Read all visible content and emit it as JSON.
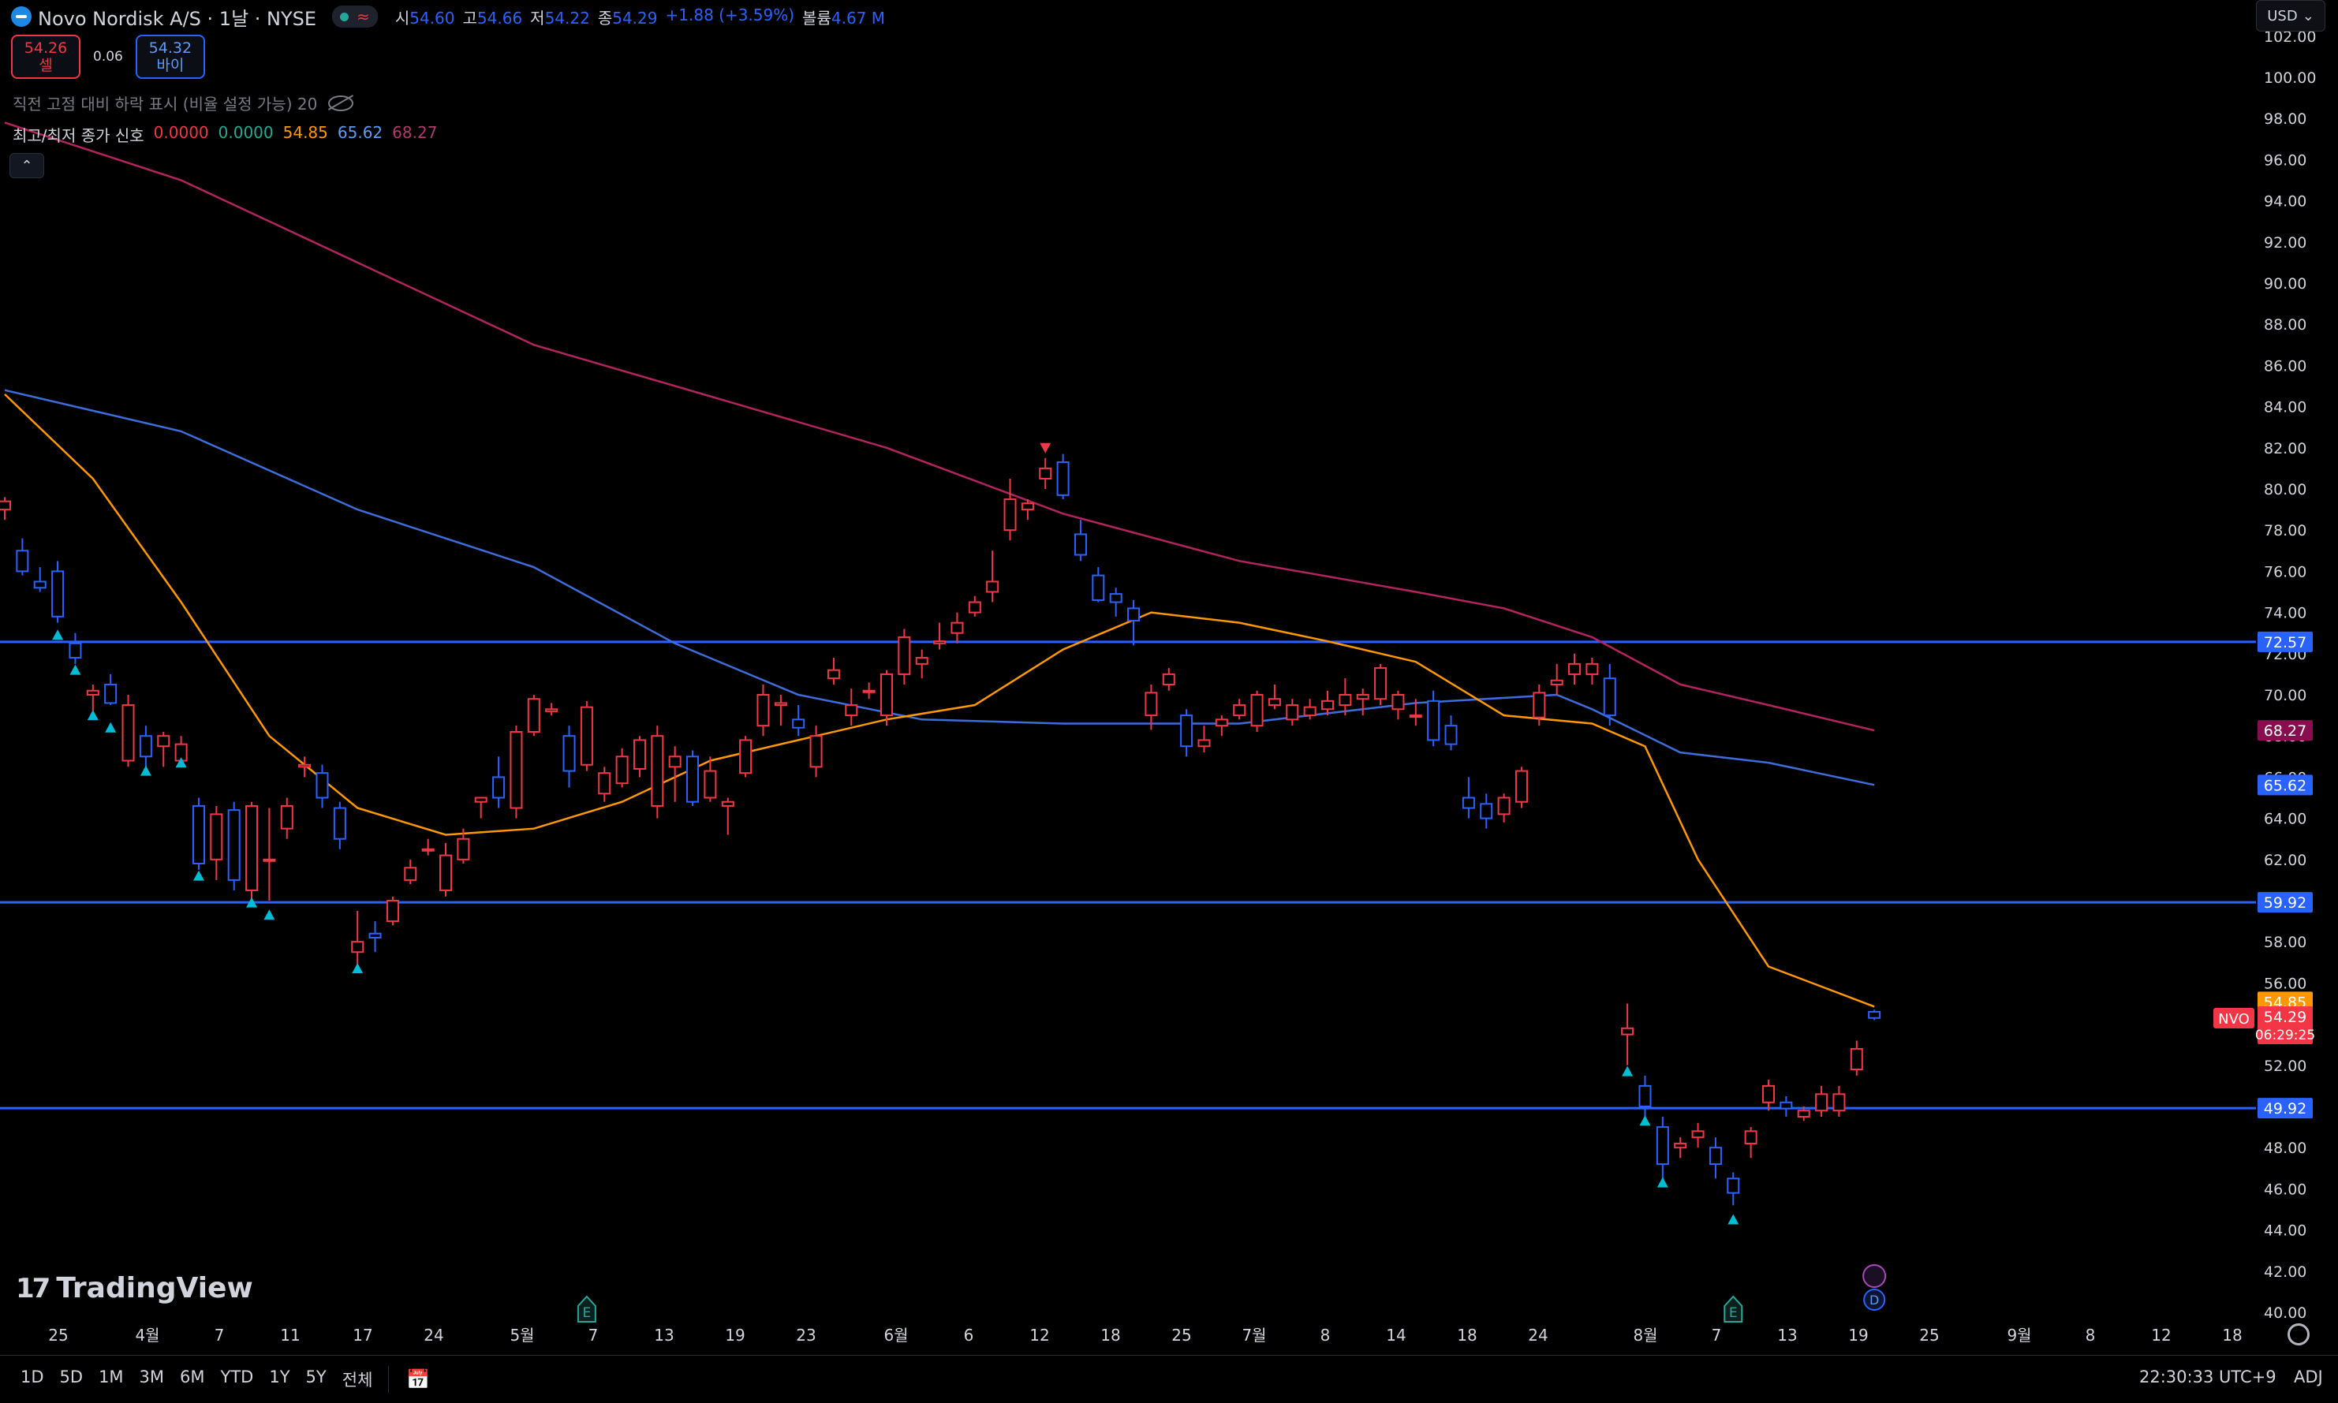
{
  "header": {
    "symbol": "Novo Nordisk A/S · 1날 · NYSE",
    "status_icon": "market-open-dot",
    "ohlc": [
      {
        "label": "시",
        "value": "54.60"
      },
      {
        "label": "고",
        "value": "54.66"
      },
      {
        "label": "저",
        "value": "54.22"
      },
      {
        "label": "종",
        "value": "54.29"
      }
    ],
    "change": "+1.88 (+3.59%)",
    "volume_label": "볼륨",
    "volume_value": "4.67 M"
  },
  "trade": {
    "sell_price": "54.26",
    "sell_label": "셀",
    "spread": "0.06",
    "buy_price": "54.32",
    "buy_label": "바이"
  },
  "indicators": {
    "line1": "직전 고점 대비 하락 표시 (비율 설정 가능) 20",
    "line2_label": "최고/최저 종가 신호",
    "line2_values": [
      {
        "value": "0.0000",
        "color": "#f23645"
      },
      {
        "value": "0.0000",
        "color": "#22ab94"
      },
      {
        "value": "54.85",
        "color": "#ff9800"
      },
      {
        "value": "65.62",
        "color": "#5b9cf6"
      },
      {
        "value": "68.27",
        "color": "#b03a6e"
      }
    ]
  },
  "currency": "USD",
  "watermark": "TradingView",
  "bottom": {
    "ranges": [
      "1D",
      "5D",
      "1M",
      "3M",
      "6M",
      "YTD",
      "1Y",
      "5Y",
      "전체"
    ],
    "clock": "22:30:33 UTC+9",
    "adj": "ADJ"
  },
  "chart_data": {
    "type": "candlestick",
    "symbol": "NVO",
    "ylim": [
      40,
      103
    ],
    "y_ticks": [
      40,
      42,
      44,
      46,
      48,
      50,
      52,
      54,
      56,
      58,
      60,
      62,
      64,
      66,
      68,
      70,
      72,
      74,
      76,
      78,
      80,
      82,
      84,
      86,
      88,
      90,
      92,
      94,
      96,
      98,
      100,
      102
    ],
    "x_ticks": [
      "25",
      "4월",
      "7",
      "11",
      "17",
      "24",
      "5월",
      "7",
      "13",
      "19",
      "23",
      "6월",
      "6",
      "12",
      "18",
      "25",
      "7월",
      "8",
      "14",
      "18",
      "24",
      "8월",
      "7",
      "13",
      "19",
      "25",
      "9월",
      "8",
      "12",
      "18"
    ],
    "horizontal_lines": [
      72.57,
      59.92,
      49.92
    ],
    "price_labels": [
      {
        "value": "72.57",
        "color": "#2962ff"
      },
      {
        "value": "68.27",
        "color": "#880e4f"
      },
      {
        "value": "65.62",
        "color": "#2962ff"
      },
      {
        "value": "59.92",
        "color": "#2962ff"
      },
      {
        "value": "54.85",
        "color": "#ff9800"
      },
      {
        "value": "54.29",
        "color": "#f23645",
        "tag": "NVO",
        "countdown": "06:29:25"
      },
      {
        "value": "49.92",
        "color": "#2962ff"
      }
    ],
    "candles": [
      [
        0,
        79.0,
        79.6,
        78.5,
        79.4
      ],
      [
        1,
        77.0,
        77.6,
        75.8,
        76.0
      ],
      [
        2,
        75.5,
        76.2,
        75.0,
        75.2
      ],
      [
        3,
        76.0,
        76.5,
        73.5,
        73.8
      ],
      [
        4,
        72.5,
        73.0,
        71.5,
        71.8
      ],
      [
        5,
        70.0,
        70.5,
        69.2,
        70.2
      ],
      [
        6,
        70.5,
        71.0,
        69.5,
        69.6
      ],
      [
        7,
        66.8,
        70.0,
        66.5,
        69.5
      ],
      [
        8,
        68.0,
        68.5,
        66.5,
        67.0
      ],
      [
        9,
        67.5,
        68.2,
        66.5,
        68.0
      ],
      [
        10,
        66.8,
        68.0,
        66.6,
        67.6
      ],
      [
        11,
        64.6,
        65.0,
        61.5,
        61.8
      ],
      [
        12,
        62.0,
        64.6,
        61.0,
        64.2
      ],
      [
        13,
        64.4,
        64.8,
        60.5,
        61.0
      ],
      [
        14,
        60.5,
        64.8,
        60.0,
        64.6
      ],
      [
        15,
        62.0,
        64.5,
        60.0,
        62.0
      ],
      [
        16,
        63.5,
        65.0,
        63.0,
        64.6
      ],
      [
        17,
        66.5,
        67.0,
        66.0,
        66.6
      ],
      [
        18,
        66.2,
        66.6,
        64.5,
        65.0
      ],
      [
        19,
        64.5,
        64.8,
        62.5,
        63.0
      ],
      [
        20,
        57.5,
        59.5,
        56.8,
        58.0
      ],
      [
        21,
        58.4,
        59.0,
        57.5,
        58.2
      ],
      [
        22,
        59.0,
        60.2,
        58.8,
        60.0
      ],
      [
        23,
        61.0,
        62.0,
        60.8,
        61.6
      ],
      [
        24,
        62.5,
        63.0,
        62.2,
        62.5
      ],
      [
        25,
        60.5,
        62.8,
        60.2,
        62.2
      ],
      [
        26,
        62.0,
        63.5,
        61.8,
        63.0
      ],
      [
        27,
        64.8,
        65.0,
        64.0,
        65.0
      ],
      [
        28,
        66.0,
        67.0,
        64.5,
        65.0
      ],
      [
        29,
        64.5,
        68.5,
        64.0,
        68.2
      ],
      [
        30,
        68.2,
        70.0,
        68.0,
        69.8
      ],
      [
        31,
        69.2,
        69.6,
        69.0,
        69.3
      ],
      [
        32,
        68.0,
        68.5,
        65.5,
        66.3
      ],
      [
        33,
        66.6,
        69.7,
        66.3,
        69.4
      ],
      [
        34,
        65.2,
        66.5,
        64.8,
        66.2
      ],
      [
        35,
        65.7,
        67.4,
        65.5,
        67.0
      ],
      [
        36,
        66.4,
        68.0,
        66.0,
        67.8
      ],
      [
        37,
        64.6,
        68.5,
        64.0,
        68.0
      ],
      [
        38,
        66.5,
        67.5,
        64.8,
        67.0
      ],
      [
        39,
        67.0,
        67.3,
        64.6,
        64.8
      ],
      [
        40,
        65.0,
        67.0,
        64.8,
        66.3
      ],
      [
        41,
        64.6,
        65.0,
        63.2,
        64.8
      ],
      [
        42,
        66.2,
        68.0,
        66.0,
        67.8
      ],
      [
        43,
        68.5,
        70.5,
        68.0,
        70.0
      ],
      [
        44,
        69.5,
        70.0,
        68.5,
        69.6
      ],
      [
        45,
        68.8,
        69.5,
        68.0,
        68.4
      ],
      [
        46,
        66.5,
        68.5,
        66.0,
        68.0
      ],
      [
        47,
        70.8,
        71.8,
        70.5,
        71.2
      ],
      [
        48,
        69.0,
        70.3,
        68.5,
        69.5
      ],
      [
        49,
        70.2,
        70.6,
        69.8,
        70.2
      ],
      [
        50,
        69.0,
        71.2,
        68.5,
        71.0
      ],
      [
        51,
        71.0,
        73.2,
        70.5,
        72.8
      ],
      [
        52,
        71.5,
        72.2,
        70.8,
        71.8
      ],
      [
        53,
        72.5,
        73.5,
        72.2,
        72.6
      ],
      [
        54,
        73.0,
        74.0,
        72.5,
        73.5
      ],
      [
        55,
        74.0,
        74.8,
        73.8,
        74.5
      ],
      [
        56,
        75.0,
        77.0,
        74.5,
        75.5
      ],
      [
        57,
        78.0,
        80.5,
        77.5,
        79.5
      ],
      [
        58,
        79.0,
        79.5,
        78.5,
        79.3
      ],
      [
        59,
        80.5,
        81.5,
        80.0,
        81.0
      ],
      [
        60,
        81.3,
        81.7,
        79.5,
        79.7
      ],
      [
        61,
        77.8,
        78.5,
        76.5,
        76.8
      ],
      [
        62,
        75.8,
        76.2,
        74.5,
        74.6
      ],
      [
        63,
        74.9,
        75.2,
        73.8,
        74.5
      ],
      [
        64,
        74.2,
        74.6,
        72.4,
        73.6
      ],
      [
        65,
        69.0,
        70.5,
        68.3,
        70.1
      ],
      [
        66,
        70.5,
        71.3,
        70.2,
        71.0
      ],
      [
        67,
        69.0,
        69.3,
        67.0,
        67.5
      ],
      [
        68,
        67.5,
        68.5,
        67.2,
        67.8
      ],
      [
        69,
        68.5,
        69.0,
        68.0,
        68.8
      ],
      [
        70,
        69.0,
        69.8,
        68.8,
        69.5
      ],
      [
        71,
        68.5,
        70.2,
        68.2,
        70.0
      ],
      [
        72,
        69.5,
        70.5,
        69.3,
        69.8
      ],
      [
        73,
        68.8,
        69.8,
        68.5,
        69.5
      ],
      [
        74,
        69.0,
        69.8,
        68.8,
        69.4
      ],
      [
        75,
        69.3,
        70.2,
        69.0,
        69.7
      ],
      [
        76,
        69.5,
        70.8,
        69.0,
        70.0
      ],
      [
        77,
        69.8,
        70.3,
        69.0,
        70.0
      ],
      [
        78,
        69.8,
        71.5,
        69.5,
        71.3
      ],
      [
        79,
        69.3,
        70.2,
        68.8,
        70.0
      ],
      [
        80,
        69.0,
        69.8,
        68.5,
        69.0
      ],
      [
        81,
        69.7,
        70.2,
        67.5,
        67.8
      ],
      [
        82,
        68.5,
        69.0,
        67.3,
        67.6
      ],
      [
        83,
        65.0,
        66.0,
        64.0,
        64.5
      ],
      [
        84,
        64.7,
        65.2,
        63.5,
        64.0
      ],
      [
        85,
        64.2,
        65.2,
        63.8,
        65.0
      ],
      [
        86,
        64.8,
        66.5,
        64.5,
        66.3
      ],
      [
        87,
        68.9,
        70.5,
        68.5,
        70.1
      ],
      [
        88,
        70.5,
        71.5,
        70.0,
        70.7
      ],
      [
        89,
        71.0,
        72.0,
        70.5,
        71.5
      ],
      [
        90,
        71.0,
        71.8,
        70.5,
        71.5
      ],
      [
        91,
        70.8,
        71.5,
        68.5,
        69.0
      ],
      [
        92,
        53.5,
        55.0,
        52.0,
        53.8
      ],
      [
        93,
        51.0,
        51.5,
        49.5,
        50.0
      ],
      [
        94,
        49.0,
        49.5,
        46.5,
        47.2
      ],
      [
        95,
        48.0,
        48.5,
        47.5,
        48.2
      ],
      [
        96,
        48.5,
        49.2,
        48.0,
        48.8
      ],
      [
        97,
        48.0,
        48.5,
        46.5,
        47.2
      ],
      [
        98,
        46.5,
        46.8,
        45.2,
        45.8
      ],
      [
        99,
        48.2,
        49.0,
        47.5,
        48.8
      ],
      [
        100,
        50.2,
        51.3,
        49.8,
        51.0
      ],
      [
        101,
        50.2,
        50.5,
        49.5,
        49.9
      ],
      [
        102,
        49.5,
        50.0,
        49.3,
        49.8
      ],
      [
        103,
        49.8,
        51.0,
        49.5,
        50.6
      ],
      [
        104,
        49.8,
        51.0,
        49.5,
        50.6
      ],
      [
        105,
        51.8,
        53.2,
        51.5,
        52.8
      ],
      [
        106,
        54.6,
        54.7,
        54.2,
        54.3
      ]
    ],
    "series": [
      {
        "name": "68.27",
        "color": "#b3245f",
        "points": [
          [
            0,
            97.8
          ],
          [
            10,
            95.0
          ],
          [
            20,
            91.0
          ],
          [
            30,
            87.0
          ],
          [
            40,
            84.5
          ],
          [
            50,
            82.0
          ],
          [
            60,
            78.8
          ],
          [
            70,
            76.5
          ],
          [
            80,
            75.0
          ],
          [
            85,
            74.2
          ],
          [
            90,
            72.8
          ],
          [
            95,
            70.5
          ],
          [
            100,
            69.5
          ],
          [
            106,
            68.27
          ]
        ]
      },
      {
        "name": "65.62",
        "color": "#3d6ddb",
        "points": [
          [
            0,
            84.8
          ],
          [
            10,
            82.8
          ],
          [
            20,
            79.0
          ],
          [
            30,
            76.2
          ],
          [
            38,
            72.5
          ],
          [
            45,
            70.0
          ],
          [
            52,
            68.8
          ],
          [
            60,
            68.6
          ],
          [
            70,
            68.6
          ],
          [
            80,
            69.6
          ],
          [
            88,
            70.0
          ],
          [
            90,
            69.3
          ],
          [
            95,
            67.2
          ],
          [
            100,
            66.7
          ],
          [
            106,
            65.62
          ]
        ]
      },
      {
        "name": "54.85",
        "color": "#ff9800",
        "points": [
          [
            0,
            84.6
          ],
          [
            5,
            80.5
          ],
          [
            10,
            74.5
          ],
          [
            15,
            68.0
          ],
          [
            20,
            64.5
          ],
          [
            25,
            63.2
          ],
          [
            30,
            63.5
          ],
          [
            35,
            64.8
          ],
          [
            40,
            66.8
          ],
          [
            45,
            67.8
          ],
          [
            50,
            68.8
          ],
          [
            55,
            69.5
          ],
          [
            60,
            72.2
          ],
          [
            65,
            74.0
          ],
          [
            70,
            73.5
          ],
          [
            75,
            72.6
          ],
          [
            80,
            71.6
          ],
          [
            85,
            69.0
          ],
          [
            90,
            68.6
          ],
          [
            93,
            67.5
          ],
          [
            96,
            62.0
          ],
          [
            100,
            56.8
          ],
          [
            106,
            54.85
          ]
        ]
      }
    ],
    "markers": {
      "up": [
        [
          3,
          72.9
        ],
        [
          4,
          71.2
        ],
        [
          5,
          69.0
        ],
        [
          6,
          68.4
        ],
        [
          8,
          66.3
        ],
        [
          10,
          66.7
        ],
        [
          11,
          61.2
        ],
        [
          14,
          59.9
        ],
        [
          15,
          59.3
        ],
        [
          20,
          56.7
        ],
        [
          92,
          51.7
        ],
        [
          93,
          49.3
        ],
        [
          94,
          46.3
        ],
        [
          98,
          44.5
        ]
      ],
      "down": [
        [
          59,
          82.0
        ]
      ]
    },
    "events": [
      {
        "x": 33,
        "label": "E"
      },
      {
        "x": 98,
        "label": "E"
      },
      {
        "x": 106,
        "label": "D"
      }
    ]
  }
}
